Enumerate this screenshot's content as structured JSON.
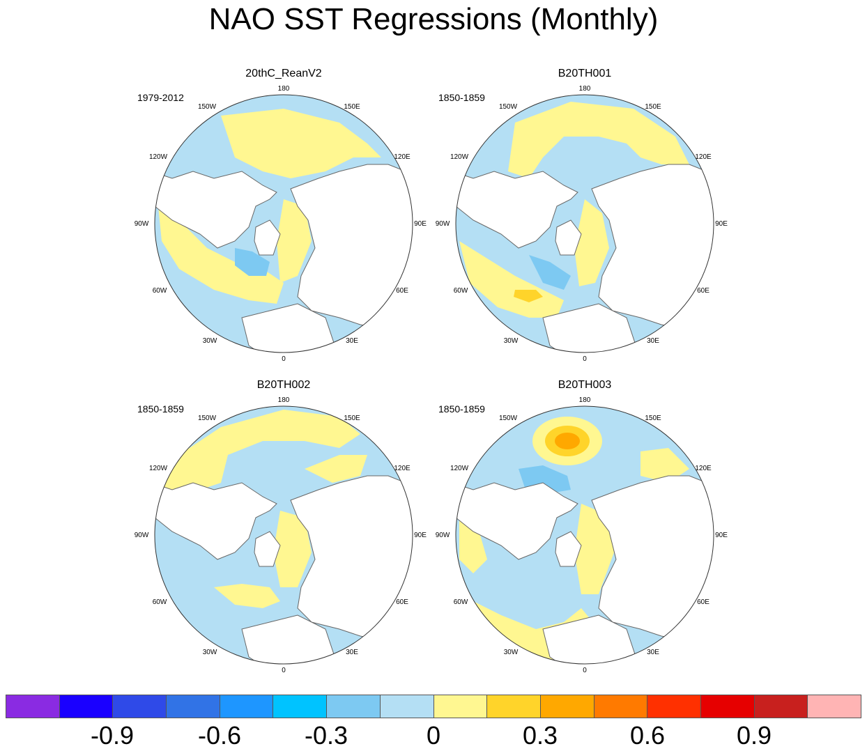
{
  "title": "NAO SST Regressions (Monthly)",
  "panels": [
    {
      "title": "20thC_ReanV2",
      "period": "1979-2012"
    },
    {
      "title": "B20TH001",
      "period": "1850-1859"
    },
    {
      "title": "B20TH002",
      "period": "1850-1859"
    },
    {
      "title": "B20TH003",
      "period": "1850-1859"
    }
  ],
  "lon_labels": [
    "180",
    "150E",
    "120E",
    "90E",
    "60E",
    "30E",
    "0",
    "30W",
    "60W",
    "90W",
    "120W",
    "150W"
  ],
  "colorbar": {
    "colors": [
      "#8a2be2",
      "#1a00ff",
      "#2f4ae8",
      "#3173e6",
      "#1e96ff",
      "#00c3ff",
      "#7dc9f2",
      "#b4dff4",
      "#fff791",
      "#ffd42a",
      "#ffa800",
      "#ff7a00",
      "#ff3000",
      "#e60000",
      "#c8201e",
      "#ffb4b4"
    ],
    "labels": [
      "-0.9",
      "-0.6",
      "-0.3",
      "0",
      "0.3",
      "0.6",
      "0.9"
    ]
  },
  "colors": {
    "ocean_base": "#b4dff4",
    "positive": "#fff791",
    "positive_strong": "#ffd42a",
    "positive_stronger": "#ffa800",
    "negative": "#7dc9f2",
    "coastline": "#666666"
  }
}
